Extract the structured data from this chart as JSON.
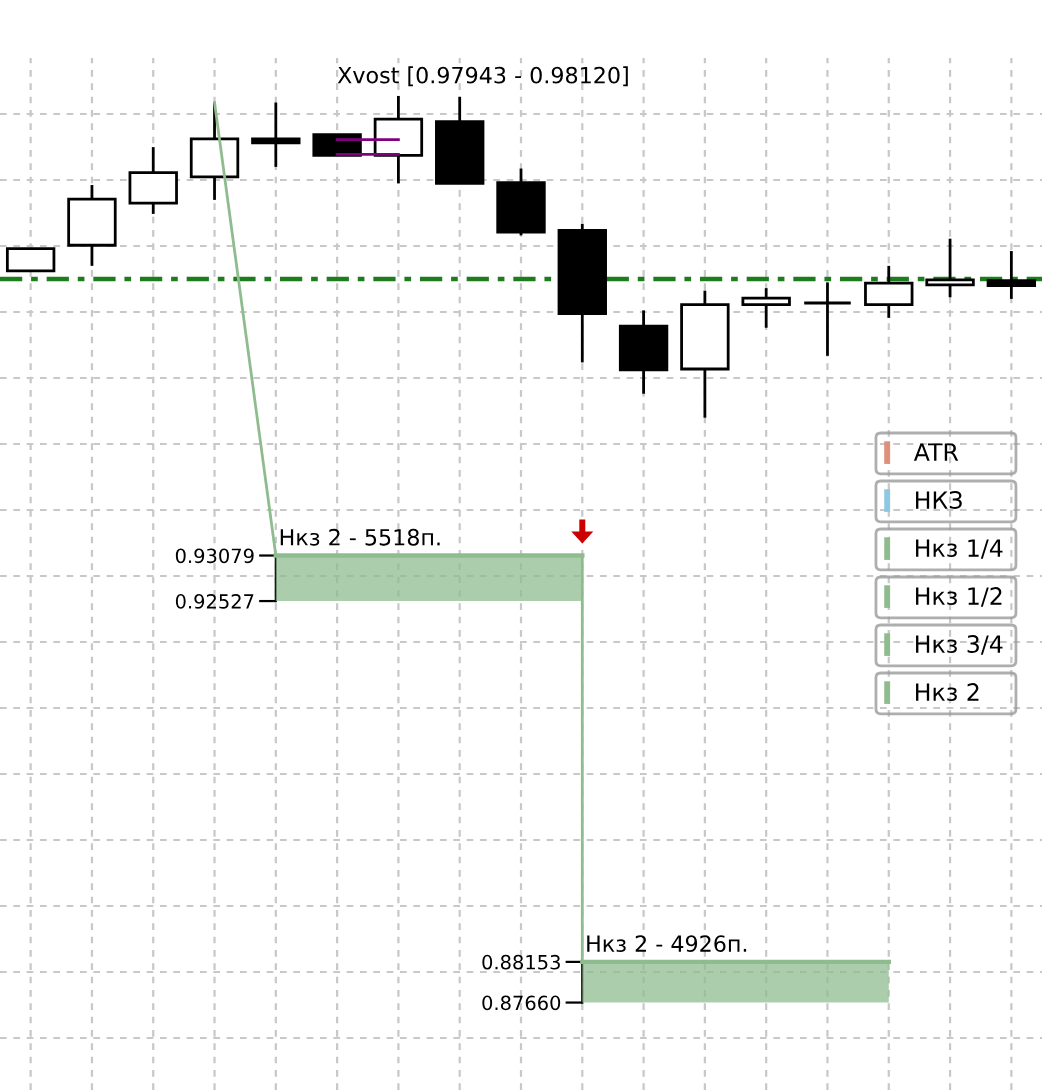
{
  "chart_data": {
    "type": "candlestick",
    "categories": [
      null,
      null,
      null,
      null,
      null,
      null,
      null,
      null,
      null,
      null,
      null,
      null,
      null,
      null,
      null,
      null,
      null
    ],
    "ohlc": [
      [
        0.9653,
        0.968,
        0.9653,
        0.968
      ],
      [
        0.9684,
        0.9757,
        0.9659,
        0.974
      ],
      [
        0.9735,
        0.9803,
        0.9722,
        0.9772
      ],
      [
        0.9767,
        0.9857,
        0.9739,
        0.9813
      ],
      [
        0.9813,
        0.9857,
        0.9779,
        0.9808
      ],
      [
        0.9818,
        0.9818,
        0.9793,
        0.9793
      ],
      [
        0.9793,
        0.9865,
        0.9759,
        0.9837
      ],
      [
        0.9834,
        0.9864,
        0.9759,
        0.9759
      ],
      [
        0.976,
        0.9777,
        0.9696,
        0.97
      ],
      [
        0.9702,
        0.971,
        0.9542,
        0.9601
      ],
      [
        0.9586,
        0.9605,
        0.9504,
        0.9533
      ],
      [
        0.9534,
        0.9629,
        0.9475,
        0.9612
      ],
      [
        0.9612,
        0.9632,
        0.9584,
        0.962
      ],
      [
        0.9614,
        0.9639,
        0.955,
        0.9614
      ],
      [
        0.9612,
        0.9659,
        0.9596,
        0.9638
      ],
      [
        0.9636,
        0.9692,
        0.9621,
        0.9642
      ],
      [
        0.9641,
        0.9677,
        0.9619,
        0.9635
      ]
    ],
    "ylim": [
      0.866,
      0.9911
    ],
    "yticks": [
      0.93079,
      0.92527
    ],
    "y2lim": [
      0.866,
      0.9911
    ],
    "y2ticks": [
      0.88153,
      {
        "value": 0.8766,
        "label": "0.87660"
      }
    ],
    "grid": true,
    "legend": "right",
    "series": [
      {
        "type": "line",
        "color": "#8fbc8f",
        "values": [
          null,
          null,
          null,
          0.9857,
          0.93079,
          null,
          null,
          null,
          null,
          null,
          null,
          null,
          null,
          null,
          null,
          null,
          null
        ]
      },
      {
        "type": "step",
        "color": "#8fbc8f",
        "values": [
          null,
          null,
          null,
          null,
          0.93079,
          0.93079,
          0.93079,
          0.93079,
          0.93079,
          0.88153,
          0.88153,
          0.88153,
          0.88153,
          0.88153,
          0.88153,
          null,
          null
        ]
      },
      {
        "type": "line",
        "name": "Нкз 2 - 5518п.",
        "color": "#8fbc8f",
        "values": [
          null,
          null,
          null,
          null,
          0.93079,
          0.93079,
          0.93079,
          0.93079,
          0.93079,
          0.93079,
          null,
          null,
          null,
          null,
          null,
          null,
          null
        ],
        "upper": [
          null,
          null,
          null,
          null,
          0.93079,
          0.93079,
          0.93079,
          0.93079,
          0.93079,
          0.93079,
          null,
          null,
          null,
          null,
          null,
          null,
          null
        ],
        "lower": [
          null,
          null,
          null,
          null,
          0.92527,
          0.92527,
          0.92527,
          0.92527,
          0.92527,
          0.92527,
          null,
          null,
          null,
          null,
          null,
          null,
          null
        ]
      },
      {
        "type": "line",
        "axis": "y2",
        "name": "Нкз 2 - 4926п.",
        "color": "#8fbc8f",
        "values": [
          null,
          null,
          null,
          null,
          null,
          null,
          null,
          null,
          null,
          0.88153,
          0.88153,
          0.88153,
          0.88153,
          0.88153,
          0.88153,
          null,
          null
        ],
        "upper": [
          null,
          null,
          null,
          null,
          null,
          null,
          null,
          null,
          null,
          0.88153,
          0.88153,
          0.88153,
          0.88153,
          0.88153,
          0.88153,
          null,
          null
        ],
        "lower": [
          null,
          null,
          null,
          null,
          null,
          null,
          null,
          null,
          null,
          0.8766,
          0.8766,
          0.8766,
          0.8766,
          0.8766,
          0.8766,
          null,
          null
        ]
      },
      {
        "type": "line",
        "name": "Xvost [0.97943 - 0.98120]",
        "color": "#800080",
        "values": [
          null,
          null,
          null,
          null,
          null,
          0.9812,
          0.9812,
          null,
          null,
          null,
          null,
          null,
          null,
          null,
          null,
          null,
          null
        ]
      },
      {
        "type": "line",
        "color": "#800080",
        "values": [
          null,
          null,
          null,
          null,
          null,
          0.97943,
          0.97943,
          null,
          null,
          null,
          null,
          null,
          null,
          null,
          null,
          null,
          null
        ]
      },
      {
        "type": "line",
        "name": "ATR",
        "color": "#e0907a",
        "values": [
          null,
          null,
          null,
          null,
          null,
          null,
          null,
          null,
          null,
          null,
          null,
          null,
          null,
          null,
          null,
          null,
          null
        ]
      },
      {
        "type": "line",
        "name": "НКЗ",
        "color": "#8ec8e0",
        "values": [
          null,
          null,
          null,
          null,
          null,
          null,
          null,
          null,
          null,
          null,
          null,
          null,
          null,
          null,
          null,
          null,
          null
        ]
      },
      {
        "type": "line",
        "name": "Нкз 1/4",
        "color": "#8fbc8f",
        "values": [
          null,
          null,
          null,
          null,
          null,
          null,
          null,
          null,
          null,
          null,
          null,
          null,
          null,
          null,
          null,
          null,
          null
        ]
      },
      {
        "type": "line",
        "name": "Нкз 1/2",
        "color": "#8fbc8f",
        "values": [
          null,
          null,
          null,
          null,
          null,
          null,
          null,
          null,
          null,
          null,
          null,
          null,
          null,
          null,
          null,
          null,
          null
        ]
      },
      {
        "type": "line",
        "name": "Нкз 3/4",
        "color": "#8fbc8f",
        "values": [
          null,
          null,
          null,
          null,
          null,
          null,
          null,
          null,
          null,
          null,
          null,
          null,
          null,
          null,
          null,
          null,
          null
        ]
      },
      {
        "type": "line",
        "name": "Нкз 2",
        "color": "#8fbc8f",
        "values": [
          null,
          null,
          null,
          null,
          null,
          null,
          null,
          null,
          null,
          null,
          null,
          null,
          null,
          null,
          null,
          null,
          null
        ]
      }
    ],
    "ref_lines": [
      {
        "axis": "y",
        "value": 0.9643,
        "color": "#1e7b1e",
        "line_style": "dashdot"
      }
    ]
  }
}
